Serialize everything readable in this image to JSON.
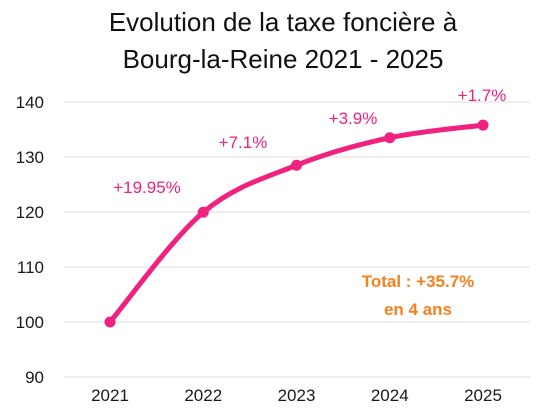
{
  "chart_data": {
    "type": "line",
    "title_lines": [
      "Evolution de la taxe foncière à",
      "Bourg-la-Reine 2021 - 2025"
    ],
    "xlabel": "",
    "ylabel": "",
    "categories": [
      "2021",
      "2022",
      "2023",
      "2024",
      "2025"
    ],
    "series": [
      {
        "values": [
          100,
          119.95,
          128.5,
          133.5,
          135.8
        ]
      }
    ],
    "data_labels": [
      "+19.95%",
      "+7.1%",
      "+3.9%",
      "+1.7%"
    ],
    "ylim": [
      90,
      140
    ],
    "yticks": [
      90,
      100,
      110,
      120,
      130,
      140
    ],
    "grid": "horizontal",
    "legend": "none",
    "annotation": {
      "line1": "Total : +35.7%",
      "line2": "en 4 ans"
    },
    "colors": {
      "series": "#f0217f",
      "annotation": "#f58220",
      "grid": "#dcdcdc",
      "text": "#111111"
    }
  }
}
